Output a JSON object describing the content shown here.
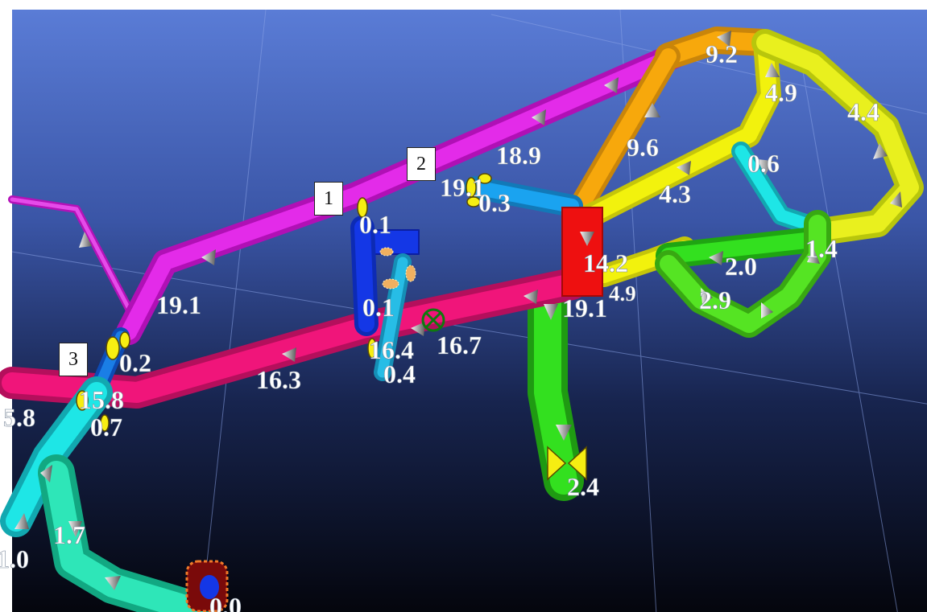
{
  "callouts": {
    "c1": "1",
    "c2": "2",
    "c3": "3"
  },
  "flow_labels": {
    "l_9_2": "9.2",
    "l_4_9_top": "4.9",
    "l_4_4": "4.4",
    "l_18_9": "18.9",
    "l_9_6": "9.6",
    "l_0_6": "0.6",
    "l_4_3": "4.3",
    "l_19_x": "19.1",
    "l_0_3": "0.3",
    "l_0_1_top": "0.1",
    "l_14_2": "14.2",
    "l_2_0": "2.0",
    "l_1_4": "1.4",
    "l_19_1_left": "19.1",
    "l_19_1_mid": "19.1",
    "l_4_9_mid": "4.9",
    "l_2_9": "2.9",
    "l_0_1_mid": "0.1",
    "l_0_2": "0.2",
    "l_16_4": "16.4",
    "l_16_7": "16.7",
    "l_16_3": "16.3",
    "l_0_4": "0.4",
    "l_5_8": "5.8",
    "l_15_8": "15.8",
    "l_0_7": "0.7",
    "l_2_4": "2.4",
    "l_1_7": "1.7",
    "l_1_0": "1.0",
    "l_0_0": "0.0"
  },
  "colors": {
    "magenta": "#e01be8",
    "pink": "#f0157a",
    "orange": "#f7a80c",
    "yellow": "#f2f20d",
    "yellowgreen": "#c9ef1d",
    "green": "#33e01f",
    "cyan": "#1ee6e6",
    "skyblue": "#1aa3f0",
    "blue": "#1437e6",
    "red": "#ee1010",
    "teal": "#22e6b0",
    "background_top": "#5878d2",
    "background_bottom": "#05060e"
  }
}
